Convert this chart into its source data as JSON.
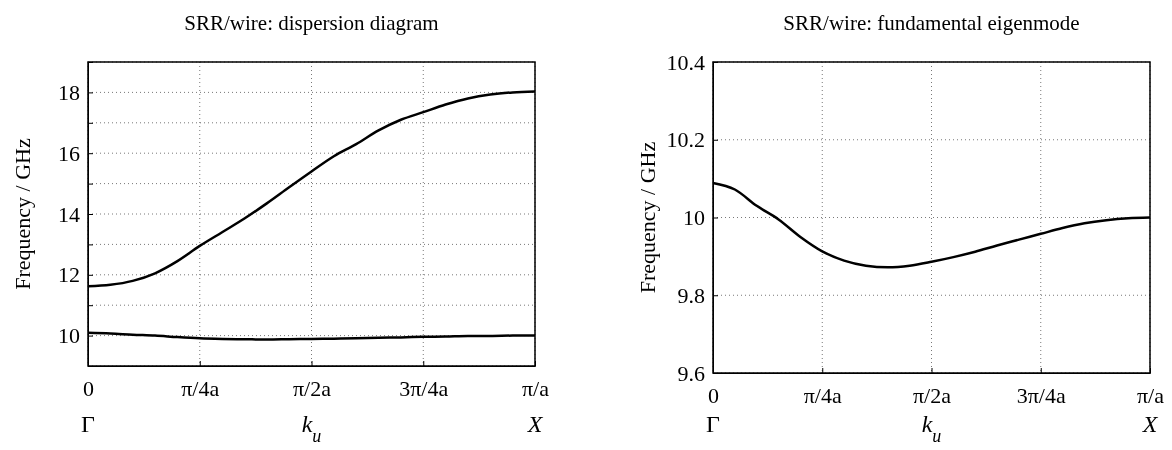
{
  "chart_data": [
    {
      "type": "line",
      "title": "SRR/wire: dispersion diagram",
      "xlabel": "k$_{u}$",
      "ylabel": "Frequency / GHz",
      "categories": [
        "0",
        null,
        null,
        null,
        null,
        "π/4a",
        null,
        null,
        null,
        null,
        "π/2a",
        null,
        null,
        null,
        null,
        "3π/4a",
        null,
        null,
        null,
        null,
        "π/a"
      ],
      "ylim": [
        9,
        19
      ],
      "yticks": [
        {
          "value": 9,
          "label": null
        },
        10,
        {
          "value": 11,
          "label": null
        },
        12,
        {
          "value": 13,
          "label": null
        },
        14,
        {
          "value": 15,
          "label": null
        },
        16,
        {
          "value": 17,
          "label": null
        },
        18,
        {
          "value": 19,
          "label": null
        }
      ],
      "grid": true,
      "annotations": [
        "Γ",
        "X"
      ],
      "series": [
        {
          "color": "#000000",
          "values": [
            11.62,
            11.67,
            11.8,
            12.05,
            12.45,
            12.95,
            13.4,
            13.85,
            14.35,
            14.88,
            15.4,
            15.9,
            16.3,
            16.75,
            17.1,
            17.35,
            17.6,
            17.8,
            17.93,
            18.0,
            18.03
          ]
        },
        {
          "color": "#000000",
          "values": [
            10.09,
            10.07,
            10.03,
            10.0,
            9.95,
            9.91,
            9.89,
            9.88,
            9.87,
            9.88,
            9.89,
            9.9,
            9.91,
            9.93,
            9.94,
            9.96,
            9.97,
            9.99,
            9.99,
            10.0,
            10.0
          ]
        }
      ]
    },
    {
      "type": "line",
      "title": "SRR/wire: fundamental eigenmode",
      "xlabel": "k$_{u}$",
      "ylabel": "Frequency / GHz",
      "categories": [
        "0",
        null,
        null,
        null,
        null,
        "π/4a",
        null,
        null,
        null,
        null,
        "π/2a",
        null,
        null,
        null,
        null,
        "3π/4a",
        null,
        null,
        null,
        null,
        "π/a"
      ],
      "ylim": [
        9.6,
        10.4
      ],
      "yticks": [
        9.6,
        9.8,
        10,
        10.2,
        10.4
      ],
      "grid": true,
      "annotations": [
        "Γ",
        "X"
      ],
      "series": [
        {
          "color": "#000000",
          "values": [
            10.089,
            10.072,
            10.03,
            9.995,
            9.95,
            9.913,
            9.889,
            9.876,
            9.872,
            9.876,
            9.886,
            9.898,
            9.912,
            9.928,
            9.943,
            9.958,
            9.973,
            9.985,
            9.993,
            9.998,
            10.0
          ]
        }
      ]
    }
  ]
}
